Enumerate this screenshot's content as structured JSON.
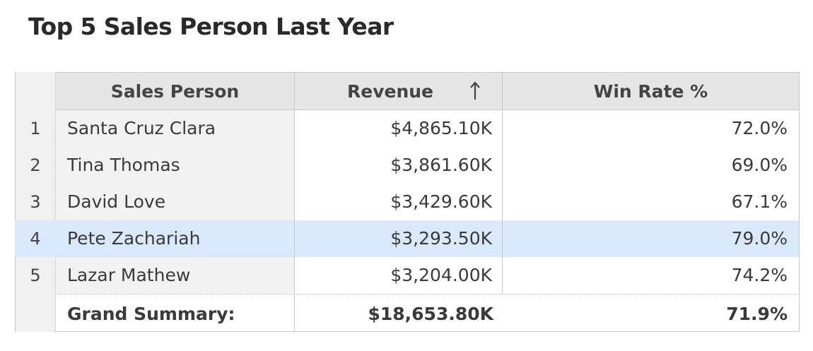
{
  "title": "Top 5 Sales Person Last Year",
  "table": {
    "columns": {
      "sales_person": "Sales Person",
      "revenue": "Revenue",
      "win_rate": "Win Rate %"
    },
    "sort": {
      "column": "Revenue",
      "icon": "sort-arrow-up-icon"
    },
    "rows": [
      {
        "num": "1",
        "name": "Santa Cruz Clara",
        "revenue": "$4,865.10K",
        "win_rate": "72.0%"
      },
      {
        "num": "2",
        "name": "Tina Thomas",
        "revenue": "$3,861.60K",
        "win_rate": "69.0%"
      },
      {
        "num": "3",
        "name": "David Love",
        "revenue": "$3,429.60K",
        "win_rate": "67.1%"
      },
      {
        "num": "4",
        "name": "Pete Zachariah",
        "revenue": "$3,293.50K",
        "win_rate": "79.0%"
      },
      {
        "num": "5",
        "name": "Lazar Mathew",
        "revenue": "$3,204.00K",
        "win_rate": "74.2%"
      }
    ],
    "summary": {
      "label": "Grand Summary:",
      "revenue": "$18,653.80K",
      "win_rate": "71.9%"
    }
  },
  "colors": {
    "header_bg": "#e5e5e5",
    "name_col_bg": "#f2f2f2",
    "selected_row_bg": "#d9e8fb",
    "grid_line": "#c8c8c8"
  }
}
